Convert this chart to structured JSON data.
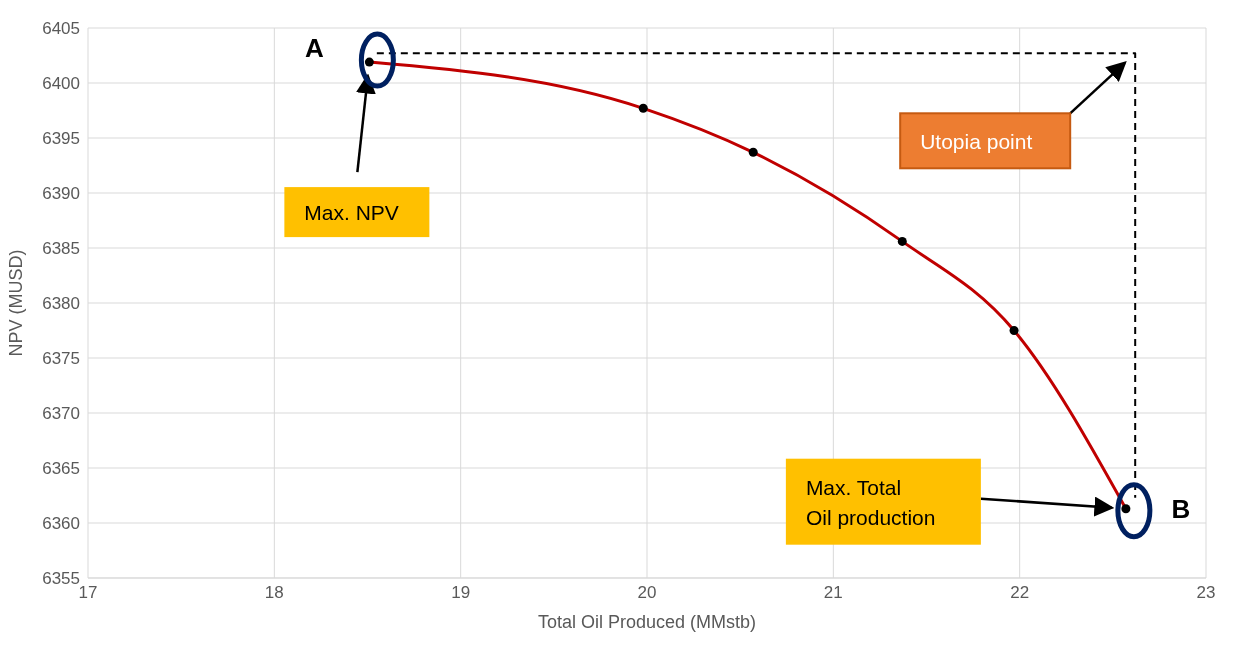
{
  "chart_data": {
    "type": "line",
    "xlabel": "Total Oil Produced (MMstb)",
    "ylabel": "NPV (MUSD)",
    "xlim": [
      17,
      23
    ],
    "xticks": [
      17,
      18,
      19,
      20,
      21,
      22,
      23
    ],
    "ylim": [
      6355,
      6405
    ],
    "yticks": [
      6355,
      6360,
      6365,
      6370,
      6375,
      6380,
      6385,
      6390,
      6395,
      6400,
      6405
    ],
    "grid": true,
    "series": [
      {
        "color": "#c00000",
        "marker": "none",
        "line_style": "solid",
        "x": [
          18.51,
          19.98,
          20.57,
          21.37,
          21.97,
          22.57
        ],
        "values": [
          6401.9,
          6397.7,
          6393.7,
          6385.6,
          6377.5,
          6361.3
        ]
      },
      {
        "type": "scatter",
        "color": "#000000",
        "marker": "circle",
        "x": [
          18.51,
          19.98,
          20.57,
          21.37,
          21.97,
          22.57
        ],
        "values": [
          6401.9,
          6397.7,
          6393.7,
          6385.6,
          6377.5,
          6361.3
        ]
      },
      {
        "color": "#000000",
        "marker": "none",
        "line_style": "dashed",
        "x": [
          18.55,
          22.62,
          22.62
        ],
        "values": [
          6402.7,
          6402.7,
          6362.3
        ]
      }
    ],
    "annotations": [
      {
        "text": "A",
        "x": 18.51,
        "y": 6401.9
      },
      "Max. NPV",
      "Utopia point",
      "Max. Total\nOil production",
      {
        "text": "B",
        "x": 22.57,
        "y": 6361.3
      }
    ]
  }
}
